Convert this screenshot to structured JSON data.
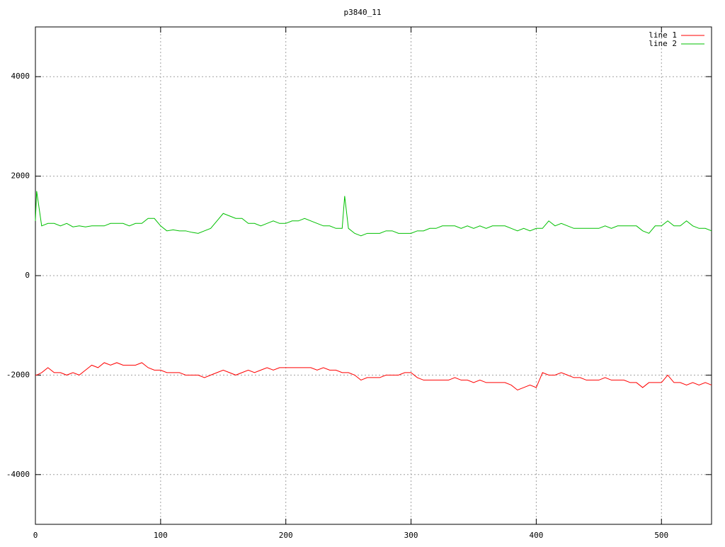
{
  "chart_data": {
    "type": "line",
    "title": "p3840_11",
    "x": [
      0,
      1,
      5,
      10,
      15,
      20,
      25,
      30,
      35,
      40,
      45,
      50,
      55,
      60,
      65,
      70,
      75,
      80,
      85,
      90,
      95,
      100,
      105,
      110,
      115,
      120,
      125,
      130,
      135,
      140,
      145,
      150,
      155,
      160,
      165,
      170,
      175,
      180,
      185,
      190,
      195,
      200,
      205,
      210,
      215,
      220,
      225,
      230,
      235,
      240,
      245,
      247,
      250,
      255,
      260,
      265,
      270,
      275,
      280,
      285,
      290,
      295,
      300,
      305,
      310,
      315,
      320,
      325,
      330,
      335,
      340,
      345,
      350,
      355,
      360,
      365,
      370,
      375,
      380,
      385,
      390,
      395,
      400,
      405,
      410,
      415,
      420,
      425,
      430,
      435,
      440,
      445,
      450,
      455,
      460,
      465,
      470,
      475,
      480,
      485,
      490,
      495,
      500,
      505,
      510,
      515,
      520,
      525,
      530,
      535,
      540
    ],
    "series": [
      {
        "name": "line 1",
        "color": "#ff0000",
        "values": [
          -2000,
          -2000,
          -1950,
          -1850,
          -1950,
          -1950,
          -2000,
          -1950,
          -2000,
          -1900,
          -1800,
          -1850,
          -1750,
          -1800,
          -1750,
          -1800,
          -1800,
          -1800,
          -1750,
          -1850,
          -1900,
          -1900,
          -1950,
          -1950,
          -1950,
          -2000,
          -2000,
          -2000,
          -2050,
          -2000,
          -1950,
          -1900,
          -1950,
          -2000,
          -1950,
          -1900,
          -1950,
          -1900,
          -1850,
          -1900,
          -1850,
          -1850,
          -1850,
          -1850,
          -1850,
          -1850,
          -1900,
          -1850,
          -1900,
          -1900,
          -1950,
          -1950,
          -1950,
          -2000,
          -2100,
          -2050,
          -2050,
          -2050,
          -2000,
          -2000,
          -2000,
          -1950,
          -1950,
          -2050,
          -2100,
          -2100,
          -2100,
          -2100,
          -2100,
          -2050,
          -2100,
          -2100,
          -2150,
          -2100,
          -2150,
          -2150,
          -2150,
          -2150,
          -2200,
          -2300,
          -2250,
          -2200,
          -2250,
          -1950,
          -2000,
          -2000,
          -1950,
          -2000,
          -2050,
          -2050,
          -2100,
          -2100,
          -2100,
          -2050,
          -2100,
          -2100,
          -2100,
          -2150,
          -2150,
          -2250,
          -2150,
          -2150,
          -2150,
          -2000,
          -2150,
          -2150,
          -2200,
          -2150,
          -2200,
          -2150,
          -2200
        ]
      },
      {
        "name": "line 2",
        "color": "#00c000",
        "values": [
          1100,
          1700,
          1000,
          1050,
          1050,
          1000,
          1050,
          980,
          1000,
          980,
          1000,
          1000,
          1000,
          1050,
          1050,
          1050,
          1000,
          1050,
          1050,
          1150,
          1150,
          1000,
          900,
          920,
          900,
          900,
          870,
          850,
          900,
          950,
          1100,
          1250,
          1200,
          1150,
          1150,
          1050,
          1050,
          1000,
          1050,
          1100,
          1050,
          1050,
          1100,
          1100,
          1150,
          1100,
          1050,
          1000,
          1000,
          950,
          950,
          1600,
          950,
          850,
          800,
          850,
          850,
          850,
          900,
          900,
          850,
          850,
          850,
          900,
          900,
          950,
          950,
          1000,
          1000,
          1000,
          950,
          1000,
          950,
          1000,
          950,
          1000,
          1000,
          1000,
          950,
          900,
          950,
          900,
          950,
          950,
          1100,
          1000,
          1050,
          1000,
          950,
          950,
          950,
          950,
          950,
          1000,
          950,
          1000,
          1000,
          1000,
          1000,
          900,
          850,
          1000,
          1000,
          1100,
          1000,
          1000,
          1100,
          1000,
          950,
          950,
          900
        ]
      }
    ],
    "xlim": [
      0,
      540
    ],
    "ylim": [
      -5000,
      5000
    ],
    "xticks": [
      0,
      100,
      200,
      300,
      400,
      500
    ],
    "yticks": [
      -4000,
      -2000,
      0,
      2000,
      4000
    ],
    "grid": true,
    "legend": "top-right"
  }
}
